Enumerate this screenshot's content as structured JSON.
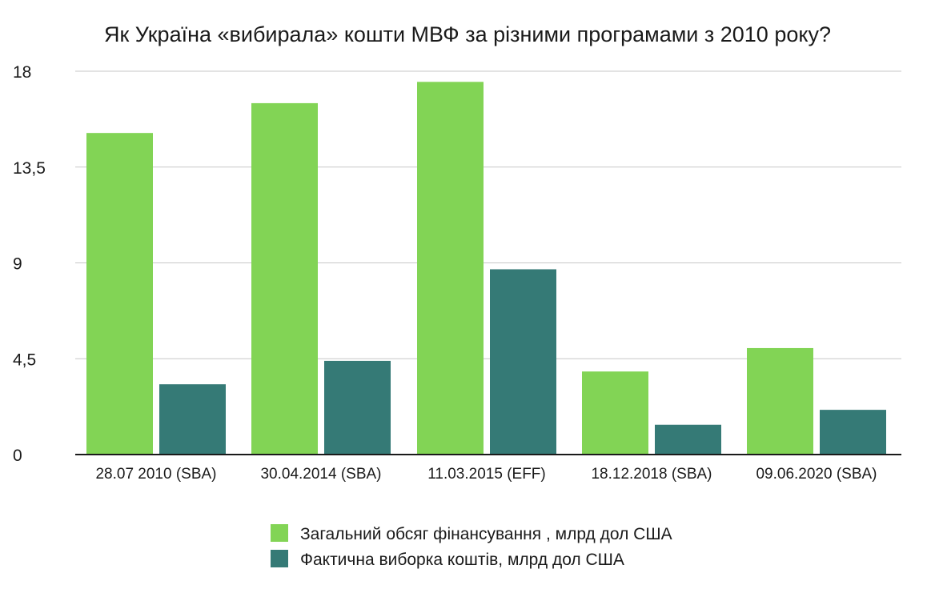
{
  "chart_data": {
    "type": "bar",
    "title": "Як Україна «вибирала» кошти МВФ за різними програмами з 2010 року?",
    "xlabel": "",
    "ylabel": "",
    "categories": [
      "28.07 2010 (SBA)",
      "30.04.2014 (SBA)",
      "11.03.2015 (EFF)",
      "18.12.2018 (SBA)",
      "09.06.2020 (SBA)"
    ],
    "series": [
      {
        "name": "Загальний обсяг фінансування , млрд дол США",
        "color": "#82d455",
        "values": [
          15.1,
          16.5,
          17.5,
          3.9,
          5.0
        ]
      },
      {
        "name": "Фактична виборка коштів, млрд дол США",
        "color": "#357a76",
        "values": [
          3.3,
          4.4,
          8.7,
          1.4,
          2.1
        ]
      }
    ],
    "ylim": [
      0,
      18
    ],
    "yticks": [
      0,
      4.5,
      9,
      13.5,
      18
    ],
    "ytick_labels": [
      "0",
      "4,5",
      "9",
      "13,5",
      "18"
    ],
    "grid": true,
    "legend_position": "bottom-center",
    "gridline_color": "#c7c7c7",
    "axis_color": "#1a1a1a"
  }
}
